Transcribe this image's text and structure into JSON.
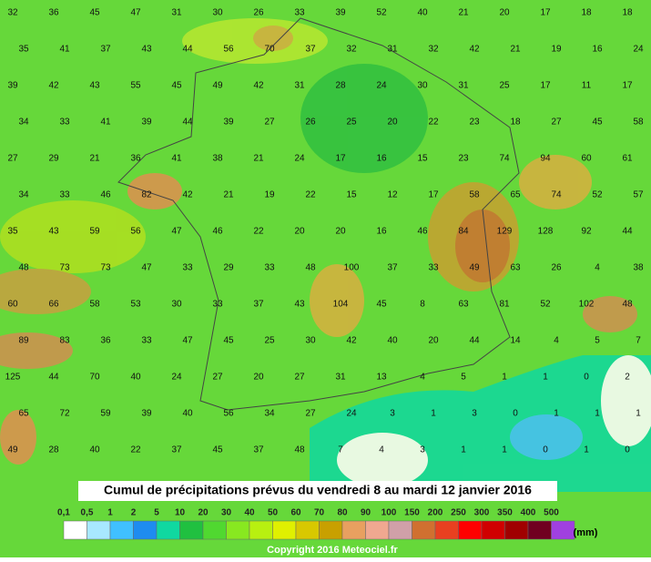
{
  "map": {
    "title": "Cumul de précipitations prévus du vendredi 8 au mardi 12 janvier 2016",
    "unit": "(mm)",
    "copyright": "Copyright 2016 Meteociel.fr",
    "legend": {
      "labels": [
        "0,1",
        "0,5",
        "1",
        "2",
        "5",
        "10",
        "20",
        "30",
        "40",
        "50",
        "60",
        "70",
        "80",
        "90",
        "100",
        "150",
        "200",
        "250",
        "300",
        "350",
        "400",
        "500"
      ],
      "colors": [
        "#ffffff",
        "#a8e8ff",
        "#40c0ff",
        "#1e8cf0",
        "#10d8a0",
        "#20c040",
        "#50d830",
        "#88e820",
        "#b8f010",
        "#e0f000",
        "#d8c800",
        "#c8a000",
        "#e8a060",
        "#f0a890",
        "#d0a0a8",
        "#d07030",
        "#e84020",
        "#ff0000",
        "#d00000",
        "#a00000",
        "#700020",
        "#a040e0"
      ]
    },
    "rows": [
      [
        "32",
        "36",
        "45",
        "47",
        "31",
        "30",
        "26",
        "33",
        "39",
        "52",
        "40",
        "21",
        "20",
        "17",
        "18",
        "18"
      ],
      [
        "35",
        "41",
        "37",
        "43",
        "44",
        "56",
        "70",
        "37",
        "32",
        "31",
        "32",
        "42",
        "21",
        "19",
        "16",
        "24"
      ],
      [
        "39",
        "42",
        "43",
        "55",
        "45",
        "49",
        "42",
        "31",
        "28",
        "24",
        "30",
        "31",
        "25",
        "17",
        "11",
        "17"
      ],
      [
        "34",
        "33",
        "41",
        "39",
        "44",
        "39",
        "27",
        "26",
        "25",
        "20",
        "22",
        "23",
        "18",
        "27",
        "45",
        "58"
      ],
      [
        "27",
        "29",
        "21",
        "36",
        "41",
        "38",
        "21",
        "24",
        "17",
        "16",
        "15",
        "23",
        "74",
        "94",
        "60",
        "61"
      ],
      [
        "34",
        "33",
        "46",
        "82",
        "42",
        "21",
        "19",
        "22",
        "15",
        "12",
        "17",
        "58",
        "65",
        "74",
        "52",
        "57"
      ],
      [
        "35",
        "43",
        "59",
        "56",
        "47",
        "46",
        "22",
        "20",
        "20",
        "16",
        "46",
        "84",
        "129",
        "128",
        "92",
        "44"
      ],
      [
        "48",
        "73",
        "73",
        "47",
        "33",
        "29",
        "33",
        "48",
        "100",
        "37",
        "33",
        "49",
        "63",
        "26",
        "4",
        "38"
      ],
      [
        "60",
        "66",
        "58",
        "53",
        "30",
        "33",
        "37",
        "43",
        "104",
        "45",
        "8",
        "63",
        "81",
        "52",
        "102",
        "48"
      ],
      [
        "89",
        "83",
        "36",
        "33",
        "47",
        "45",
        "25",
        "30",
        "42",
        "40",
        "20",
        "44",
        "14",
        "4",
        "5",
        "7"
      ],
      [
        "125",
        "44",
        "70",
        "40",
        "24",
        "27",
        "20",
        "27",
        "31",
        "13",
        "4",
        "5",
        "1",
        "1",
        "0",
        "2"
      ],
      [
        "65",
        "72",
        "59",
        "39",
        "40",
        "56",
        "34",
        "27",
        "24",
        "3",
        "1",
        "3",
        "0",
        "1",
        "1",
        "1"
      ],
      [
        "49",
        "28",
        "40",
        "22",
        "37",
        "45",
        "37",
        "48",
        "7",
        "4",
        "3",
        "1",
        "1",
        "0",
        "1",
        "0"
      ]
    ]
  }
}
